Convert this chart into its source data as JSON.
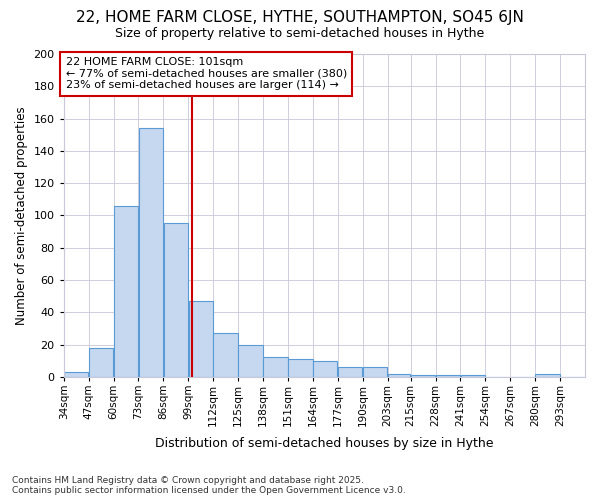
{
  "title1": "22, HOME FARM CLOSE, HYTHE, SOUTHAMPTON, SO45 6JN",
  "title2": "Size of property relative to semi-detached houses in Hythe",
  "xlabel": "Distribution of semi-detached houses by size in Hythe",
  "ylabel": "Number of semi-detached properties",
  "bin_edges": [
    34,
    47,
    60,
    73,
    86,
    99,
    112,
    125,
    138,
    151,
    164,
    177,
    190,
    203,
    215,
    228,
    241,
    254,
    267,
    280,
    293,
    306
  ],
  "counts": [
    3,
    18,
    106,
    154,
    95,
    47,
    27,
    20,
    12,
    11,
    10,
    6,
    6,
    2,
    1,
    1,
    1,
    0,
    0,
    2,
    0
  ],
  "bar_color": "#c5d8f0",
  "bar_edge_color": "#5b9bd5",
  "vline_x": 101,
  "vline_color": "#cc0000",
  "annotation_title": "22 HOME FARM CLOSE: 101sqm",
  "annotation_line1": "← 77% of semi-detached houses are smaller (380)",
  "annotation_line2": "23% of semi-detached houses are larger (114) →",
  "annotation_box_color": "#ffffff",
  "annotation_box_edge": "#cc0000",
  "footer1": "Contains HM Land Registry data © Crown copyright and database right 2025.",
  "footer2": "Contains public sector information licensed under the Open Government Licence v3.0.",
  "ylim": [
    0,
    200
  ],
  "yticks": [
    0,
    20,
    40,
    60,
    80,
    100,
    120,
    140,
    160,
    180,
    200
  ],
  "tick_labels": [
    "34sqm",
    "47sqm",
    "60sqm",
    "73sqm",
    "86sqm",
    "99sqm",
    "112sqm",
    "125sqm",
    "138sqm",
    "151sqm",
    "164sqm",
    "177sqm",
    "190sqm",
    "203sqm",
    "215sqm",
    "228sqm",
    "241sqm",
    "254sqm",
    "267sqm",
    "280sqm",
    "293sqm"
  ],
  "background_color": "#ffffff",
  "grid_color": "#c8c8d8",
  "title1_fontsize": 11,
  "title2_fontsize": 9
}
